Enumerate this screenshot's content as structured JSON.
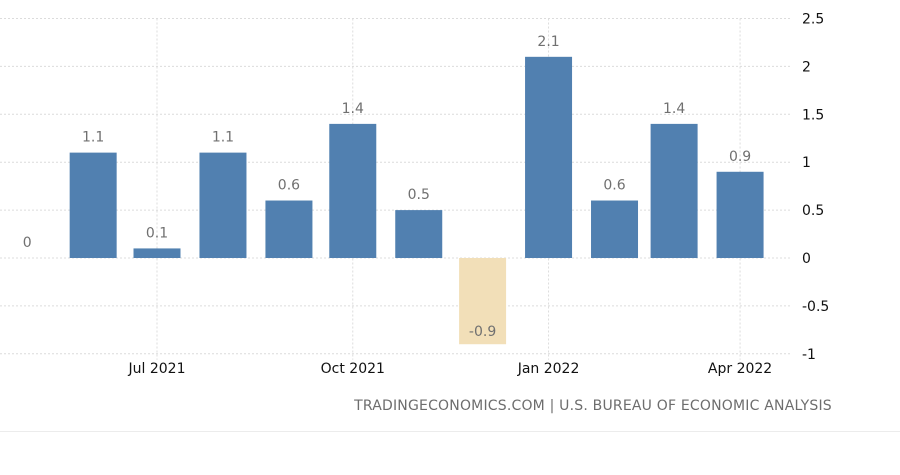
{
  "chart_data": {
    "type": "bar",
    "categories": [
      "2021-05",
      "2021-06",
      "2021-07",
      "2021-08",
      "2021-09",
      "2021-10",
      "2021-11",
      "2021-12",
      "2022-01",
      "2022-02",
      "2022-03",
      "2022-04"
    ],
    "values": [
      0,
      1.1,
      0.1,
      1.1,
      0.6,
      1.4,
      0.5,
      -0.9,
      2.1,
      0.6,
      1.4,
      0.9
    ],
    "value_labels": [
      "0",
      "1.1",
      "0.1",
      "1.1",
      "0.6",
      "1.4",
      "0.5",
      "-0.9",
      "2.1",
      "0.6",
      "1.4",
      "0.9"
    ],
    "x_ticks": [
      {
        "date": "2021-07-01",
        "label": "Jul 2021"
      },
      {
        "date": "2021-10-01",
        "label": "Oct 2021"
      },
      {
        "date": "2022-01-01",
        "label": "Jan 2022"
      },
      {
        "date": "2022-04-01",
        "label": "Apr 2022"
      }
    ],
    "y_ticks": [
      2.5,
      2,
      1.5,
      1,
      0.5,
      0,
      -0.5,
      -1
    ],
    "y_tick_labels": [
      "2.5",
      "2",
      "1.5",
      "1",
      "0.5",
      "0",
      "-0.5",
      "-1"
    ],
    "ylim": [
      -1,
      2.5
    ],
    "grid": true,
    "y_axis_position": "right",
    "title": "",
    "xlabel": "",
    "ylabel": "",
    "colors": {
      "positive": "#5180b0",
      "negative": "#f2dfb8",
      "grid": "#dcdcdc",
      "label": "#707070"
    }
  },
  "source": "TRADINGECONOMICS.COM | U.S. BUREAU OF ECONOMIC ANALYSIS"
}
